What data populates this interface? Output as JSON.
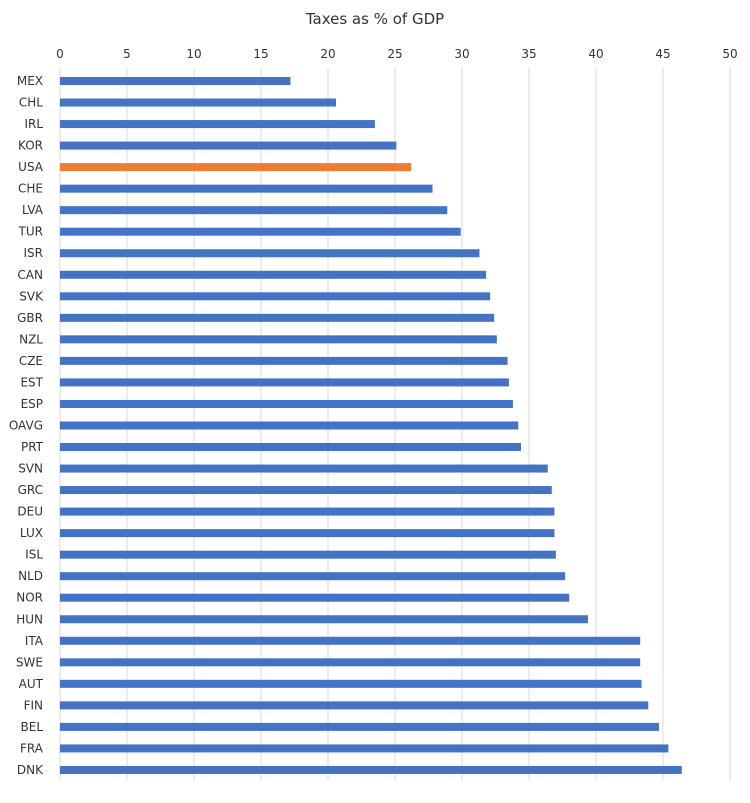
{
  "chart_data": {
    "type": "bar",
    "orientation": "horizontal",
    "title": "Taxes as % of GDP",
    "xlabel": "",
    "ylabel": "",
    "xlim": [
      0,
      50
    ],
    "x_ticks": [
      0,
      5,
      10,
      15,
      20,
      25,
      30,
      35,
      40,
      45,
      50
    ],
    "x_tick_labels": [
      "0",
      "5",
      "10",
      "15",
      "20",
      "25",
      "30",
      "35",
      "40",
      "45",
      "50"
    ],
    "axis_position": "top",
    "grid": true,
    "legend": "none",
    "categories": [
      "MEX",
      "CHL",
      "IRL",
      "KOR",
      "USA",
      "CHE",
      "LVA",
      "TUR",
      "ISR",
      "CAN",
      "SVK",
      "GBR",
      "NZL",
      "CZE",
      "EST",
      "ESP",
      "OAVG",
      "PRT",
      "SVN",
      "GRC",
      "DEU",
      "LUX",
      "ISL",
      "NLD",
      "NOR",
      "HUN",
      "ITA",
      "SWE",
      "AUT",
      "FIN",
      "BEL",
      "FRA",
      "DNK"
    ],
    "values": [
      17.2,
      20.6,
      23.5,
      25.1,
      26.2,
      27.8,
      28.9,
      29.9,
      31.3,
      31.8,
      32.1,
      32.4,
      32.6,
      33.4,
      33.5,
      33.8,
      34.2,
      34.4,
      36.4,
      36.7,
      36.9,
      36.9,
      37.0,
      37.7,
      38.0,
      39.4,
      43.3,
      43.3,
      43.4,
      43.9,
      44.7,
      45.4,
      46.4
    ],
    "default_color": "#4472C4",
    "highlight": {
      "category": "USA",
      "color": "#ED7D31"
    }
  }
}
